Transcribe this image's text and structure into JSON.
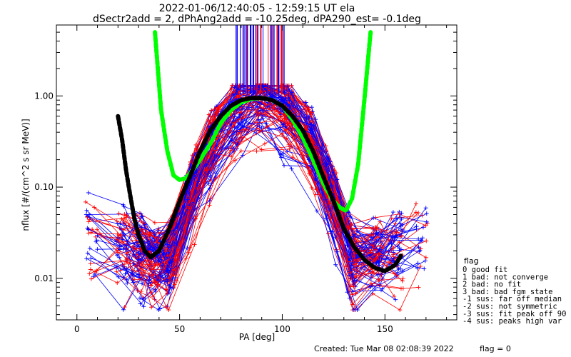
{
  "chart_data": {
    "type": "scatter",
    "title": "2022-01-06/12:40:05 - 12:59:15 UT ela",
    "subtitle": "dSectr2add = 2, dPhAng2add = -10.25deg, dPA290_est=  -0.1deg",
    "xlabel": "PA [deg]",
    "ylabel": "nflux [#/(cm^2 s sr MeV)]",
    "xlim": [
      -10,
      185
    ],
    "ylim": [
      0.0035,
      6
    ],
    "yscale": "log",
    "xticks": [
      0,
      50,
      100,
      150
    ],
    "yticks": [
      {
        "v": 0.01,
        "label": "0.01"
      },
      {
        "v": 0.1,
        "label": "0.10"
      },
      {
        "v": 1.0,
        "label": "1.00"
      }
    ],
    "grid": false,
    "legend_position": "right",
    "colors": {
      "red": "#ff0000",
      "blue": "#0000ff",
      "green": "#00ff00",
      "black": "#000000"
    },
    "series": [
      {
        "color": "#00ff00",
        "style": "thick-dashed",
        "x": [
          38,
          41,
          44,
          47,
          50,
          53,
          56,
          60,
          65,
          70,
          75,
          80,
          85,
          90,
          95,
          100,
          105,
          110,
          115,
          120,
          125,
          128,
          131,
          134,
          137,
          140,
          143
        ],
        "y": [
          5,
          0.7,
          0.25,
          0.135,
          0.12,
          0.125,
          0.15,
          0.2,
          0.3,
          0.5,
          0.7,
          0.85,
          0.93,
          0.95,
          0.9,
          0.78,
          0.55,
          0.35,
          0.2,
          0.11,
          0.07,
          0.06,
          0.055,
          0.075,
          0.18,
          0.9,
          5
        ]
      },
      {
        "color": "#000000",
        "style": "thick-dashed",
        "x": [
          20,
          22,
          24,
          26,
          28,
          30,
          33,
          36,
          40,
          45,
          50,
          55,
          60,
          65,
          70,
          75,
          80,
          85,
          90,
          95,
          100,
          105,
          110,
          115,
          120,
          125,
          130,
          135,
          140,
          145,
          150,
          155,
          158
        ],
        "y": [
          0.6,
          0.33,
          0.15,
          0.08,
          0.045,
          0.03,
          0.02,
          0.017,
          0.02,
          0.035,
          0.07,
          0.13,
          0.25,
          0.42,
          0.6,
          0.78,
          0.9,
          0.95,
          0.95,
          0.9,
          0.78,
          0.6,
          0.42,
          0.25,
          0.13,
          0.07,
          0.035,
          0.022,
          0.016,
          0.013,
          0.012,
          0.014,
          0.018
        ]
      }
    ],
    "legend": {
      "title": "flag",
      "entries": [
        " 0 good fit",
        " 1 bad: not converge",
        " 2 bad: no fit",
        " 3 bad: bad fgm state",
        "-1 sus: far off median",
        "-2 sus: not symmetric",
        "-3 sus: fit peak off 90",
        "-4 sus: peaks high var"
      ]
    },
    "footer": {
      "created": "Created: Tue Mar 08 02:08:39 2022",
      "flag": "flag = 0"
    }
  }
}
